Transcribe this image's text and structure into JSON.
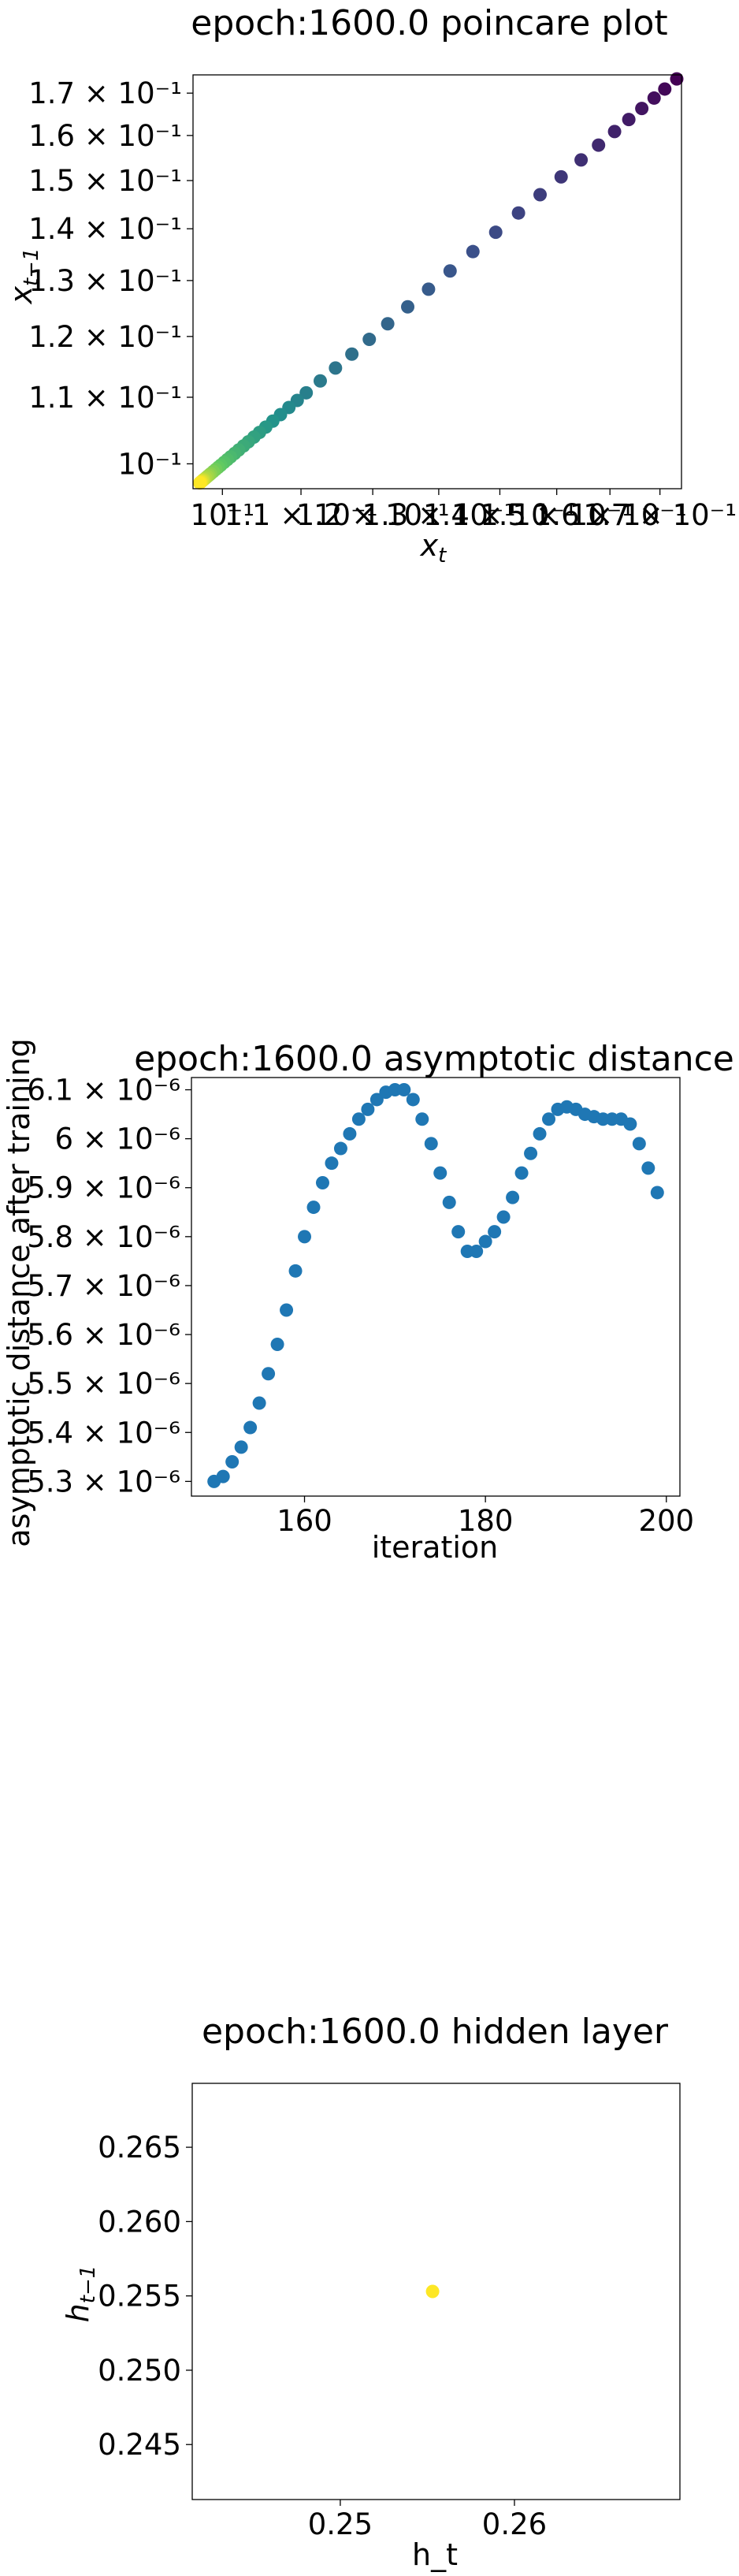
{
  "chart_data": [
    {
      "type": "scatter",
      "title": "epoch:1600.0 poincare plot",
      "xlabel": "x_t",
      "ylabel": "x_{t-1}",
      "scale": "log",
      "color_map": "viridis",
      "xlim": [
        0.0965,
        0.1745
      ],
      "ylim": [
        0.0965,
        0.1745
      ],
      "x_ticks": [
        {
          "value": 0.1,
          "label": "10⁻¹"
        },
        {
          "value": 0.11,
          "label": "1.1 × 10⁻¹"
        },
        {
          "value": 0.12,
          "label": "1.2 × 10⁻¹"
        },
        {
          "value": 0.13,
          "label": "1.3 × 10⁻¹"
        },
        {
          "value": 0.14,
          "label": "1.4 × 10⁻¹"
        },
        {
          "value": 0.15,
          "label": "1.5 × 10⁻¹"
        },
        {
          "value": 0.16,
          "label": "1.6 × 10⁻¹"
        },
        {
          "value": 0.17,
          "label": "1.7 × 10⁻¹"
        }
      ],
      "y_ticks": [
        {
          "value": 0.1,
          "label": "10⁻¹"
        },
        {
          "value": 0.11,
          "label": "1.1 × 10⁻¹"
        },
        {
          "value": 0.12,
          "label": "1.2 × 10⁻¹"
        },
        {
          "value": 0.13,
          "label": "1.3 × 10⁻¹"
        },
        {
          "value": 0.14,
          "label": "1.4 × 10⁻¹"
        },
        {
          "value": 0.15,
          "label": "1.5 × 10⁻¹"
        },
        {
          "value": 0.16,
          "label": "1.6 × 10⁻¹"
        },
        {
          "value": 0.17,
          "label": "1.7 × 10⁻¹"
        }
      ],
      "points": [
        [
          0.1735,
          0.1735
        ],
        [
          0.171,
          0.171
        ],
        [
          0.1688,
          0.1688
        ],
        [
          0.1663,
          0.1663
        ],
        [
          0.1637,
          0.1637
        ],
        [
          0.1609,
          0.1609
        ],
        [
          0.1578,
          0.1578
        ],
        [
          0.1545,
          0.1545
        ],
        [
          0.1508,
          0.1508
        ],
        [
          0.147,
          0.147
        ],
        [
          0.1432,
          0.1432
        ],
        [
          0.1393,
          0.1393
        ],
        [
          0.1355,
          0.1355
        ],
        [
          0.1318,
          0.1318
        ],
        [
          0.1284,
          0.1284
        ],
        [
          0.1252,
          0.1252
        ],
        [
          0.1222,
          0.1222
        ],
        [
          0.1195,
          0.1195
        ],
        [
          0.117,
          0.117
        ],
        [
          0.1147,
          0.1147
        ],
        [
          0.1126,
          0.1126
        ],
        [
          0.1107,
          0.1107
        ],
        [
          0.1095,
          0.1095
        ],
        [
          0.1084,
          0.1084
        ],
        [
          0.1073,
          0.1073
        ],
        [
          0.1063,
          0.1063
        ],
        [
          0.1054,
          0.1054
        ],
        [
          0.1046,
          0.1046
        ],
        [
          0.1039,
          0.1039
        ],
        [
          0.1032,
          0.1032
        ],
        [
          0.1026,
          0.1026
        ],
        [
          0.102,
          0.102
        ],
        [
          0.1015,
          0.1015
        ],
        [
          0.101,
          0.101
        ],
        [
          0.1006,
          0.1006
        ],
        [
          0.1002,
          0.1002
        ],
        [
          0.0998,
          0.0998
        ],
        [
          0.0995,
          0.0995
        ],
        [
          0.0992,
          0.0992
        ],
        [
          0.0989,
          0.0989
        ],
        [
          0.0986,
          0.0986
        ],
        [
          0.0984,
          0.0984
        ],
        [
          0.0982,
          0.0982
        ],
        [
          0.098,
          0.098
        ],
        [
          0.0978,
          0.0978
        ],
        [
          0.0977,
          0.0977
        ],
        [
          0.0976,
          0.0976
        ],
        [
          0.0975,
          0.0975
        ],
        [
          0.0974,
          0.0974
        ],
        [
          0.0973,
          0.0973
        ]
      ]
    },
    {
      "type": "scatter",
      "title": "epoch:1600.0 asymptotic distance",
      "xlabel": "iteration",
      "ylabel": "asymptotic distance after training",
      "point_color": "#1f77b4",
      "xlim": [
        147.5,
        201.5
      ],
      "ylim": [
        5.27e-06,
        6.125e-06
      ],
      "x_ticks": [
        {
          "value": 160,
          "label": "160"
        },
        {
          "value": 180,
          "label": "180"
        },
        {
          "value": 200,
          "label": "200"
        }
      ],
      "y_ticks": [
        {
          "value": 5.3e-06,
          "label": "5.3 × 10⁻⁶"
        },
        {
          "value": 5.4e-06,
          "label": "5.4 × 10⁻⁶"
        },
        {
          "value": 5.5e-06,
          "label": "5.5 × 10⁻⁶"
        },
        {
          "value": 5.6e-06,
          "label": "5.6 × 10⁻⁶"
        },
        {
          "value": 5.7e-06,
          "label": "5.7 × 10⁻⁶"
        },
        {
          "value": 5.8e-06,
          "label": "5.8 × 10⁻⁶"
        },
        {
          "value": 5.9e-06,
          "label": "5.9 × 10⁻⁶"
        },
        {
          "value": 6e-06,
          "label": "6 × 10⁻⁶"
        },
        {
          "value": 6.1e-06,
          "label": "6.1 × 10⁻⁶"
        }
      ],
      "x": [
        150,
        151,
        152,
        153,
        154,
        155,
        156,
        157,
        158,
        159,
        160,
        161,
        162,
        163,
        164,
        165,
        166,
        167,
        168,
        169,
        170,
        171,
        172,
        173,
        174,
        175,
        176,
        177,
        178,
        179,
        180,
        181,
        182,
        183,
        184,
        185,
        186,
        187,
        188,
        189,
        190,
        191,
        192,
        193,
        194,
        195,
        196,
        197,
        198,
        199
      ],
      "y": [
        5.3e-06,
        5.31e-06,
        5.34e-06,
        5.37e-06,
        5.41e-06,
        5.46e-06,
        5.52e-06,
        5.58e-06,
        5.65e-06,
        5.73e-06,
        5.8e-06,
        5.86e-06,
        5.91e-06,
        5.95e-06,
        5.98e-06,
        6.01e-06,
        6.04e-06,
        6.06e-06,
        6.08e-06,
        6.095e-06,
        6.1e-06,
        6.1e-06,
        6.08e-06,
        6.04e-06,
        5.99e-06,
        5.93e-06,
        5.87e-06,
        5.81e-06,
        5.77e-06,
        5.77e-06,
        5.79e-06,
        5.81e-06,
        5.84e-06,
        5.88e-06,
        5.93e-06,
        5.97e-06,
        6.01e-06,
        6.04e-06,
        6.06e-06,
        6.065e-06,
        6.06e-06,
        6.05e-06,
        6.045e-06,
        6.04e-06,
        6.04e-06,
        6.04e-06,
        6.03e-06,
        5.99e-06,
        5.94e-06,
        5.89e-06
      ]
    },
    {
      "type": "scatter",
      "title": "epoch:1600.0 hidden layer",
      "xlabel": "h_t",
      "ylabel": "h_{t-1}",
      "point_color": "#fde725",
      "xlim": [
        0.2415,
        0.2695
      ],
      "ylim": [
        0.2413,
        0.2693
      ],
      "x_ticks": [
        {
          "value": 0.25,
          "label": "0.25"
        },
        {
          "value": 0.26,
          "label": "0.26"
        }
      ],
      "y_ticks": [
        {
          "value": 0.245,
          "label": "0.245"
        },
        {
          "value": 0.25,
          "label": "0.250"
        },
        {
          "value": 0.255,
          "label": "0.255"
        },
        {
          "value": 0.26,
          "label": "0.260"
        },
        {
          "value": 0.265,
          "label": "0.265"
        }
      ],
      "points": [
        [
          0.2553,
          0.2553
        ]
      ]
    }
  ]
}
